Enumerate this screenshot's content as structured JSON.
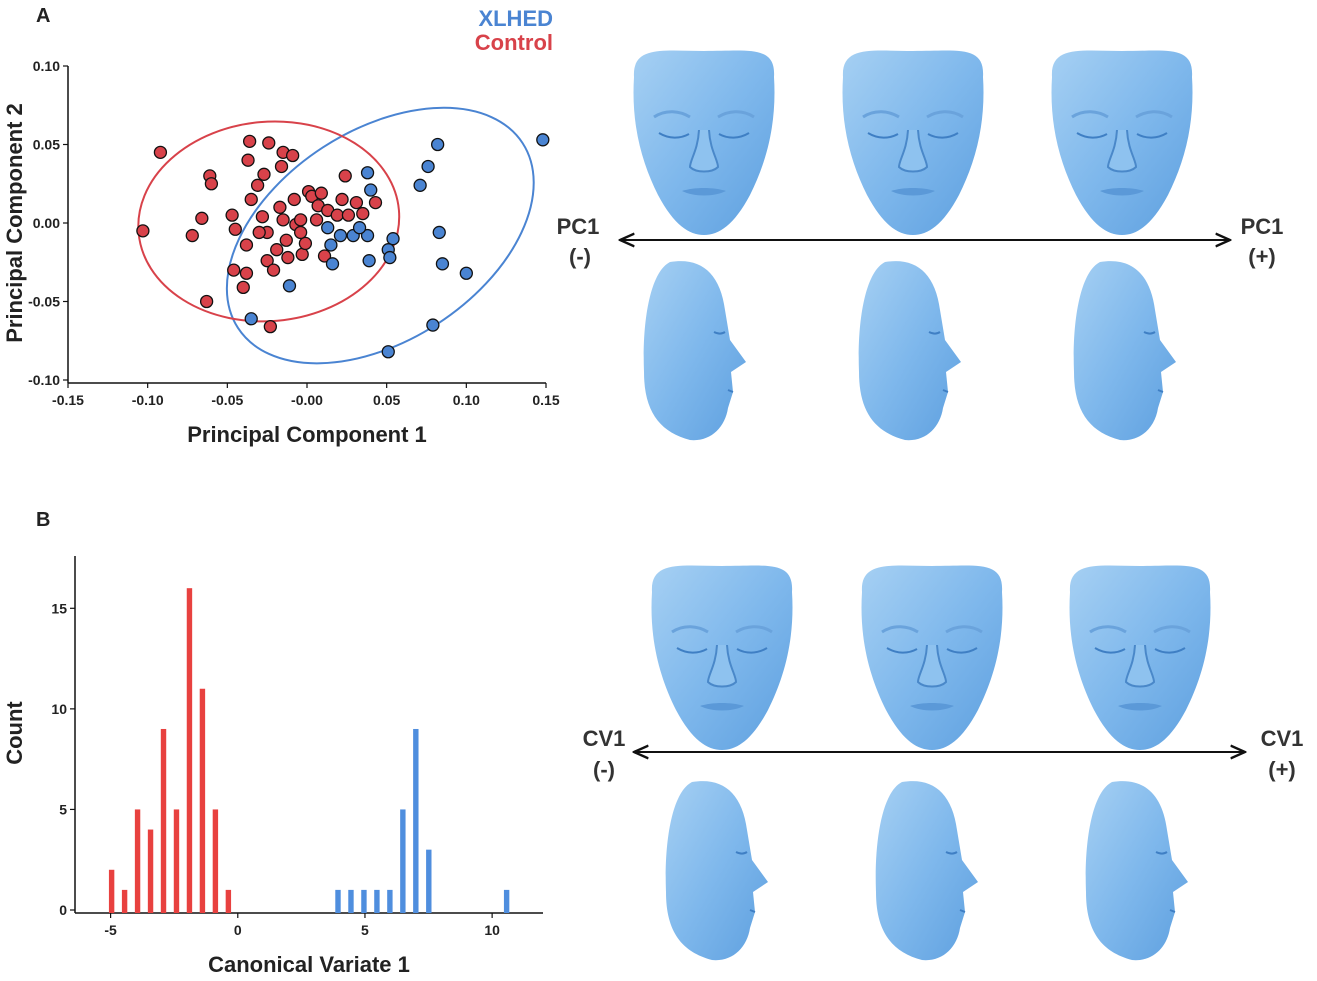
{
  "figure": {
    "panels": [
      "A",
      "B"
    ],
    "arrows": [
      {
        "left": "PC1",
        "left_sign": "(-)",
        "right": "PC1",
        "right_sign": "(+)"
      },
      {
        "left": "CV1",
        "left_sign": "(-)",
        "right": "CV1",
        "right_sign": "(+)"
      }
    ]
  },
  "chart_data": [
    {
      "type": "scatter",
      "xlabel": "Principal Component 1",
      "ylabel": "Principal Component 2",
      "xlim": [
        -0.15,
        0.15
      ],
      "ylim": [
        -0.1,
        0.1
      ],
      "xticks": [
        -0.15,
        {
          "value": -0.1,
          "label": "-0.10"
        },
        -0.05,
        {
          "value": 0,
          "label": "-0.00"
        },
        0.05,
        {
          "value": 0.1,
          "label": "0.10"
        },
        0.15
      ],
      "yticks": [
        {
          "value": 0.1,
          "label": "0.10"
        },
        0.05,
        {
          "value": 0,
          "label": "0.00"
        },
        -0.05,
        {
          "value": -0.1,
          "label": "-0.10"
        }
      ],
      "legend": "top-right",
      "series": [
        {
          "name": "XLHED",
          "color": "#4a84d2",
          "x": [
            0.148,
            0.082,
            0.076,
            0.071,
            0.038,
            0.04,
            0.021,
            0.029,
            0.015,
            0.038,
            0.054,
            0.051,
            0.052,
            0.039,
            0.083,
            0.085,
            0.1,
            0.079,
            0.051,
            -0.035,
            -0.011,
            0.016,
            0.013,
            0.033
          ],
          "y": [
            0.053,
            0.05,
            0.036,
            0.024,
            0.032,
            0.021,
            -0.008,
            -0.008,
            -0.014,
            -0.008,
            -0.01,
            -0.017,
            -0.022,
            -0.024,
            -0.006,
            -0.026,
            -0.032,
            -0.065,
            -0.082,
            -0.061,
            -0.04,
            -0.026,
            -0.003,
            -0.003
          ],
          "ellipse": {
            "center": [
              0.046,
              -0.008
            ],
            "width": 0.213,
            "height": 0.134,
            "angle": -33
          }
        },
        {
          "name": "Control",
          "color": "#d8424a",
          "x": [
            -0.103,
            -0.092,
            -0.072,
            -0.066,
            -0.061,
            -0.06,
            -0.063,
            -0.047,
            -0.045,
            -0.038,
            -0.04,
            -0.038,
            -0.037,
            -0.036,
            -0.035,
            -0.031,
            -0.028,
            -0.027,
            -0.025,
            -0.024,
            -0.025,
            -0.023,
            -0.021,
            -0.019,
            -0.017,
            -0.016,
            -0.015,
            -0.015,
            -0.013,
            -0.012,
            -0.009,
            -0.008,
            -0.007,
            -0.004,
            -0.003,
            -0.001,
            0.001,
            0.003,
            0.006,
            0.007,
            0.009,
            0.011,
            0.013,
            0.019,
            0.022,
            0.024,
            0.026,
            0.031,
            0.035,
            0.043,
            -0.03,
            -0.004,
            -0.046
          ],
          "y": [
            -0.005,
            0.045,
            -0.008,
            0.003,
            0.03,
            0.025,
            -0.05,
            0.005,
            -0.004,
            -0.032,
            -0.041,
            -0.014,
            0.04,
            0.052,
            0.015,
            0.024,
            0.004,
            0.031,
            -0.006,
            0.051,
            -0.024,
            -0.066,
            -0.03,
            -0.017,
            0.01,
            0.036,
            0.045,
            0.002,
            -0.011,
            -0.022,
            0.043,
            0.015,
            -0.001,
            0.002,
            -0.02,
            -0.013,
            0.02,
            0.017,
            0.002,
            0.011,
            0.019,
            -0.021,
            0.008,
            0.005,
            0.015,
            0.03,
            0.005,
            0.013,
            0.006,
            0.013,
            -0.006,
            -0.006,
            -0.03
          ],
          "ellipse": {
            "center": [
              -0.024,
              0.001
            ],
            "width": 0.164,
            "height": 0.127,
            "angle": -5
          }
        }
      ]
    },
    {
      "type": "bar",
      "xlabel": "Canonical Variate 1",
      "ylabel": "Count",
      "xlim": [
        -6.4,
        12
      ],
      "ylim": [
        0,
        17.6
      ],
      "xticks": [
        -5,
        0,
        5,
        10
      ],
      "yticks": [
        0,
        5,
        10,
        15
      ],
      "series": [
        {
          "color": "#e8413f",
          "x": [
            -4.96,
            -4.45,
            -3.94,
            -3.43,
            -2.92,
            -2.41,
            -1.9,
            -1.39,
            -0.88,
            -0.37
          ],
          "values": [
            2,
            1,
            5,
            4,
            9,
            5,
            16,
            11,
            5,
            1
          ]
        },
        {
          "color": "#4f8ede",
          "x": [
            3.94,
            4.45,
            4.96,
            5.47,
            5.98,
            6.49,
            7.0,
            7.51,
            10.57
          ],
          "values": [
            1,
            1,
            1,
            1,
            1,
            5,
            9,
            3,
            1
          ]
        }
      ]
    }
  ]
}
